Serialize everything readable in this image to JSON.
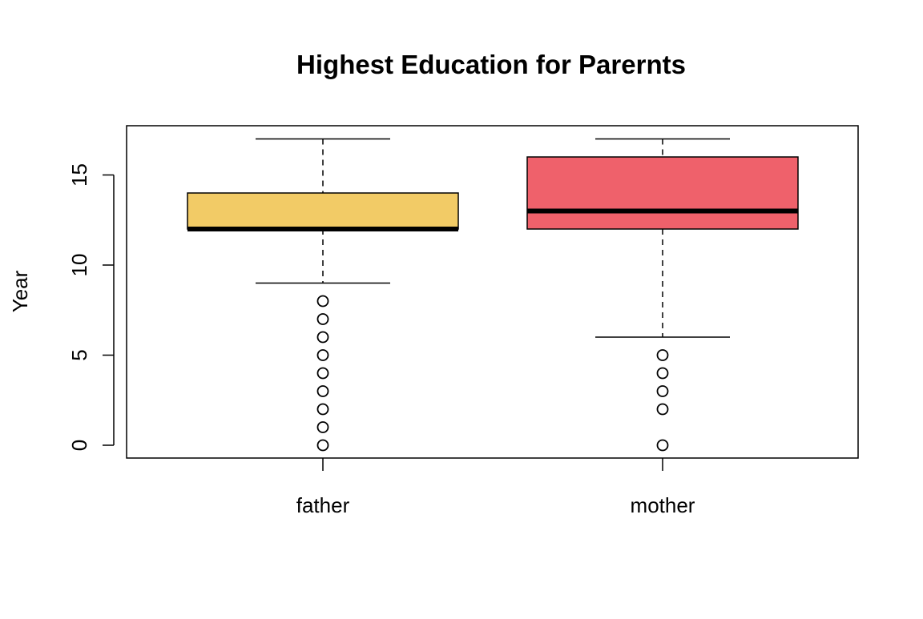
{
  "chart_data": {
    "type": "box",
    "title": "Highest Education for Parernts",
    "xlabel": "",
    "ylabel": "Year",
    "ylim": [
      -0.7,
      17.7
    ],
    "yticks": [
      0,
      5,
      10,
      15
    ],
    "grid": false,
    "categories": [
      "father",
      "mother"
    ],
    "series": [
      {
        "category": "father",
        "color": "#F2CB66",
        "whisker_low": 9,
        "q1": 12,
        "median": 12,
        "q3": 14,
        "whisker_high": 17,
        "outliers": [
          8,
          7,
          6,
          5,
          4,
          3,
          2,
          1,
          0
        ]
      },
      {
        "category": "mother",
        "color": "#EF616B",
        "whisker_low": 6,
        "q1": 12,
        "median": 13,
        "q3": 16,
        "whisker_high": 17,
        "outliers": [
          5,
          4,
          3,
          2,
          0
        ]
      }
    ]
  }
}
